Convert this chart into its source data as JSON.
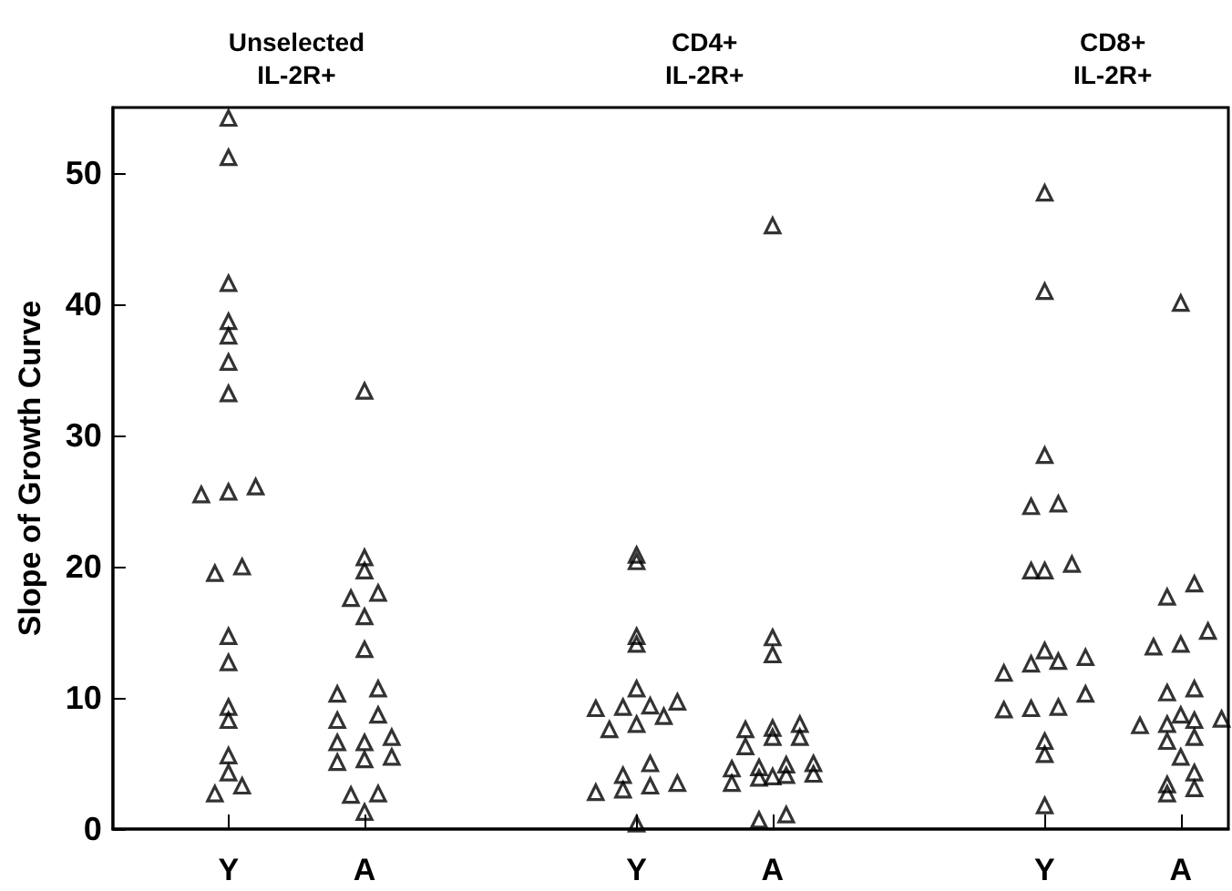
{
  "chart_data": {
    "type": "scatter",
    "ylabel": "Slope of Growth Curve",
    "annotations": [
      "Unselected\nIL-2R+",
      "CD4+\nIL-2R+",
      "CD8+\nIL-2R+"
    ],
    "categories": [
      null,
      null,
      null,
      null,
      null,
      null,
      null,
      null,
      "Y",
      null,
      null,
      null,
      null,
      null,
      null,
      null,
      null,
      null,
      "A",
      null,
      null,
      null,
      null,
      null,
      null,
      null,
      null,
      null,
      null,
      null,
      null,
      null,
      null,
      null,
      null,
      null,
      null,
      null,
      "Y",
      null,
      null,
      null,
      null,
      null,
      null,
      null,
      null,
      null,
      "A",
      null,
      null,
      null,
      null,
      null,
      null,
      null,
      null,
      null,
      null,
      null,
      null,
      null,
      null,
      null,
      null,
      null,
      null,
      null,
      "Y",
      null,
      null,
      null,
      null,
      null,
      null,
      null,
      null,
      null,
      "A",
      null,
      null,
      null
    ],
    "ylim": [
      0,
      55
    ],
    "yticks": [
      0,
      10,
      20,
      30,
      40,
      50
    ],
    "grid": false,
    "marker": "triangle",
    "series": [
      {
        "color": "#000000",
        "values": [
          null,
          null,
          null,
          null,
          null,
          null,
          25.5,
          19.5,
          54.2,
          20.0,
          26.1,
          null,
          null,
          null,
          null,
          null,
          10.3,
          17.6,
          33.4,
          18.0,
          7.0,
          null,
          null,
          null,
          null,
          null,
          null,
          null,
          null,
          null,
          null,
          null,
          null,
          null,
          null,
          9.2,
          7.6,
          9.3,
          20.9,
          9.4,
          8.6,
          9.7,
          null,
          null,
          null,
          4.6,
          7.6,
          4.7,
          46.0,
          4.9,
          8.0,
          5.0,
          null,
          null,
          null,
          null,
          null,
          null,
          null,
          null,
          null,
          null,
          null,
          null,
          null,
          11.9,
          null,
          24.6,
          48.5,
          24.8,
          20.2,
          13.1,
          null,
          null,
          null,
          7.9,
          13.9,
          17.7,
          40.1,
          18.7,
          15.1,
          8.4
        ]
      },
      {
        "color": "#000000",
        "values": [
          null,
          null,
          null,
          null,
          null,
          null,
          null,
          2.7,
          51.2,
          3.3,
          null,
          null,
          null,
          null,
          null,
          null,
          8.3,
          2.6,
          20.7,
          10.7,
          5.5,
          null,
          null,
          null,
          null,
          null,
          null,
          null,
          null,
          null,
          null,
          null,
          null,
          null,
          null,
          2.8,
          null,
          4.1,
          20.4,
          5.0,
          null,
          3.5,
          null,
          null,
          null,
          3.5,
          6.3,
          3.9,
          14.6,
          4.1,
          7.0,
          4.2,
          null,
          null,
          null,
          null,
          null,
          null,
          null,
          null,
          null,
          null,
          null,
          null,
          null,
          9.1,
          null,
          19.7,
          41.0,
          12.8,
          null,
          10.3,
          null,
          null,
          null,
          null,
          null,
          10.4,
          14.1,
          10.7,
          null,
          null
        ]
      },
      {
        "color": "#000000",
        "values": [
          null,
          null,
          null,
          null,
          null,
          null,
          null,
          null,
          41.6,
          null,
          null,
          null,
          null,
          null,
          null,
          null,
          6.6,
          null,
          19.7,
          8.7,
          null,
          null,
          null,
          null,
          null,
          null,
          null,
          null,
          null,
          null,
          null,
          null,
          null,
          null,
          null,
          null,
          null,
          3.0,
          14.7,
          3.3,
          null,
          null,
          null,
          null,
          null,
          null,
          null,
          0.7,
          13.3,
          1.1,
          null,
          null,
          null,
          null,
          null,
          null,
          null,
          null,
          null,
          null,
          null,
          null,
          null,
          null,
          null,
          null,
          null,
          12.6,
          28.5,
          9.3,
          null,
          null,
          null,
          null,
          null,
          null,
          null,
          8.0,
          8.7,
          8.3,
          null,
          null
        ]
      },
      {
        "color": "#000000",
        "values": [
          null,
          null,
          null,
          null,
          null,
          null,
          null,
          null,
          38.7,
          null,
          null,
          null,
          null,
          null,
          null,
          null,
          5.1,
          null,
          16.2,
          2.7,
          null,
          null,
          null,
          null,
          null,
          null,
          null,
          null,
          null,
          null,
          null,
          null,
          null,
          null,
          null,
          null,
          null,
          null,
          14.1,
          null,
          null,
          null,
          null,
          null,
          null,
          null,
          null,
          null,
          7.7,
          null,
          null,
          null,
          null,
          null,
          null,
          null,
          null,
          null,
          null,
          null,
          null,
          null,
          null,
          null,
          null,
          null,
          null,
          9.2,
          19.7,
          null,
          null,
          null,
          null,
          null,
          null,
          null,
          null,
          6.7,
          5.5,
          7.0,
          null,
          null
        ]
      },
      {
        "color": "#000000",
        "values": [
          null,
          null,
          null,
          null,
          null,
          null,
          null,
          null,
          37.6,
          null,
          null,
          null,
          null,
          null,
          null,
          null,
          null,
          null,
          13.7,
          null,
          null,
          null,
          null,
          null,
          null,
          null,
          null,
          null,
          null,
          null,
          null,
          null,
          null,
          null,
          null,
          null,
          null,
          null,
          10.7,
          null,
          null,
          null,
          null,
          null,
          null,
          null,
          null,
          null,
          7.0,
          null,
          null,
          null,
          null,
          null,
          null,
          null,
          null,
          null,
          null,
          null,
          null,
          null,
          null,
          null,
          null,
          null,
          null,
          null,
          13.6,
          null,
          null,
          null,
          null,
          null,
          null,
          null,
          null,
          3.4,
          null,
          4.3,
          null,
          null
        ]
      },
      {
        "color": "#000000",
        "values": [
          null,
          null,
          null,
          null,
          null,
          null,
          null,
          null,
          35.6,
          null,
          null,
          null,
          null,
          null,
          null,
          null,
          null,
          null,
          6.6,
          null,
          null,
          null,
          null,
          null,
          null,
          null,
          null,
          null,
          null,
          null,
          null,
          null,
          null,
          null,
          null,
          null,
          null,
          null,
          8.0,
          null,
          null,
          null,
          null,
          null,
          null,
          null,
          null,
          null,
          4.0,
          null,
          null,
          null,
          null,
          null,
          null,
          null,
          null,
          null,
          null,
          null,
          null,
          null,
          null,
          null,
          null,
          null,
          null,
          null,
          6.7,
          null,
          null,
          null,
          null,
          null,
          null,
          null,
          null,
          2.7,
          null,
          3.1,
          null,
          null
        ]
      },
      {
        "color": "#000000",
        "values": [
          null,
          null,
          null,
          null,
          null,
          null,
          null,
          null,
          33.2,
          null,
          null,
          null,
          null,
          null,
          null,
          null,
          null,
          null,
          5.3,
          null,
          null,
          null,
          null,
          null,
          null,
          null,
          null,
          null,
          null,
          null,
          null,
          null,
          null,
          null,
          null,
          null,
          null,
          null,
          0.4,
          null,
          null,
          null,
          null,
          null,
          null,
          null,
          null,
          null,
          null,
          null,
          null,
          null,
          null,
          null,
          null,
          null,
          null,
          null,
          null,
          null,
          null,
          null,
          null,
          null,
          null,
          null,
          null,
          null,
          5.7,
          null,
          null,
          null,
          null,
          null,
          null,
          null,
          null,
          null,
          null,
          null,
          null,
          null
        ]
      },
      {
        "color": "#000000",
        "values": [
          null,
          null,
          null,
          null,
          null,
          null,
          null,
          null,
          25.7,
          null,
          null,
          null,
          null,
          null,
          null,
          null,
          null,
          null,
          1.3,
          null,
          null,
          null,
          null,
          null,
          null,
          null,
          null,
          null,
          null,
          null,
          null,
          null,
          null,
          null,
          null,
          null,
          null,
          null,
          null,
          null,
          null,
          null,
          null,
          null,
          null,
          null,
          null,
          null,
          null,
          null,
          null,
          null,
          null,
          null,
          null,
          null,
          null,
          null,
          null,
          null,
          null,
          null,
          null,
          null,
          null,
          null,
          null,
          null,
          1.8,
          null,
          null,
          null,
          null,
          null,
          null,
          null,
          null,
          null,
          null,
          null,
          null,
          null
        ]
      },
      {
        "color": "#000000",
        "values": [
          null,
          null,
          null,
          null,
          null,
          null,
          null,
          null,
          14.7,
          null,
          null,
          null,
          null,
          null,
          null,
          null,
          null,
          null,
          null,
          null,
          null,
          null,
          null,
          null,
          null,
          null,
          null,
          null,
          null,
          null,
          null,
          null,
          null,
          null,
          null,
          null,
          null,
          null,
          null,
          null,
          null,
          null,
          null,
          null,
          null,
          null,
          null,
          null,
          null,
          null,
          null,
          null,
          null,
          null,
          null,
          null,
          null,
          null,
          null,
          null,
          null,
          null,
          null,
          null,
          null,
          null,
          null,
          null,
          null,
          null,
          null,
          null,
          null,
          null,
          null,
          null,
          null,
          null,
          null,
          null,
          null,
          null
        ]
      },
      {
        "color": "#000000",
        "values": [
          null,
          null,
          null,
          null,
          null,
          null,
          null,
          null,
          12.7,
          null,
          null,
          null,
          null,
          null,
          null,
          null,
          null,
          null,
          null,
          null,
          null,
          null,
          null,
          null,
          null,
          null,
          null,
          null,
          null,
          null,
          null,
          null,
          null,
          null,
          null,
          null,
          null,
          null,
          null,
          null,
          null,
          null,
          null,
          null,
          null,
          null,
          null,
          null,
          null,
          null,
          null,
          null,
          null,
          null,
          null,
          null,
          null,
          null,
          null,
          null,
          null,
          null,
          null,
          null,
          null,
          null,
          null,
          null,
          null,
          null,
          null,
          null,
          null,
          null,
          null,
          null,
          null,
          null,
          null,
          null,
          null,
          null
        ]
      },
      {
        "color": "#000000",
        "values": [
          null,
          null,
          null,
          null,
          null,
          null,
          null,
          null,
          9.3,
          null,
          null,
          null,
          null,
          null,
          null,
          null,
          null,
          null,
          null,
          null,
          null,
          null,
          null,
          null,
          null,
          null,
          null,
          null,
          null,
          null,
          null,
          null,
          null,
          null,
          null,
          null,
          null,
          null,
          null,
          null,
          null,
          null,
          null,
          null,
          null,
          null,
          null,
          null,
          null,
          null,
          null,
          null,
          null,
          null,
          null,
          null,
          null,
          null,
          null,
          null,
          null,
          null,
          null,
          null,
          null,
          null,
          null,
          null,
          null,
          null,
          null,
          null,
          null,
          null,
          null,
          null,
          null,
          null,
          null,
          null,
          null,
          null
        ]
      },
      {
        "color": "#000000",
        "values": [
          null,
          null,
          null,
          null,
          null,
          null,
          null,
          null,
          8.3,
          null,
          null,
          null,
          null,
          null,
          null,
          null,
          null,
          null,
          null,
          null,
          null,
          null,
          null,
          null,
          null,
          null,
          null,
          null,
          null,
          null,
          null,
          null,
          null,
          null,
          null,
          null,
          null,
          null,
          null,
          null,
          null,
          null,
          null,
          null,
          null,
          null,
          null,
          null,
          null,
          null,
          null,
          null,
          null,
          null,
          null,
          null,
          null,
          null,
          null,
          null,
          null,
          null,
          null,
          null,
          null,
          null,
          null,
          null,
          null,
          null,
          null,
          null,
          null,
          null,
          null,
          null,
          null,
          null,
          null,
          null,
          null,
          null
        ]
      },
      {
        "color": "#000000",
        "values": [
          null,
          null,
          null,
          null,
          null,
          null,
          null,
          null,
          5.6,
          null,
          null,
          null,
          null,
          null,
          null,
          null,
          null,
          null,
          null,
          null,
          null,
          null,
          null,
          null,
          null,
          null,
          null,
          null,
          null,
          null,
          null,
          null,
          null,
          null,
          null,
          null,
          null,
          null,
          null,
          null,
          null,
          null,
          null,
          null,
          null,
          null,
          null,
          null,
          null,
          null,
          null,
          null,
          null,
          null,
          null,
          null,
          null,
          null,
          null,
          null,
          null,
          null,
          null,
          null,
          null,
          null,
          null,
          null,
          null,
          null,
          null,
          null,
          null,
          null,
          null,
          null,
          null,
          null,
          null,
          null,
          null,
          null
        ]
      },
      {
        "color": "#000000",
        "values": [
          null,
          null,
          null,
          null,
          null,
          null,
          null,
          null,
          4.3,
          null,
          null,
          null,
          null,
          null,
          null,
          null,
          null,
          null,
          null,
          null,
          null,
          null,
          null,
          null,
          null,
          null,
          null,
          null,
          null,
          null,
          null,
          null,
          null,
          null,
          null,
          null,
          null,
          null,
          null,
          null,
          null,
          null,
          null,
          null,
          null,
          null,
          null,
          null,
          null,
          null,
          null,
          null,
          null,
          null,
          null,
          null,
          null,
          null,
          null,
          null,
          null,
          null,
          null,
          null,
          null,
          null,
          null,
          null,
          null,
          null,
          null,
          null,
          null,
          null,
          null,
          null,
          null,
          null,
          null,
          null,
          null,
          null
        ]
      }
    ]
  }
}
